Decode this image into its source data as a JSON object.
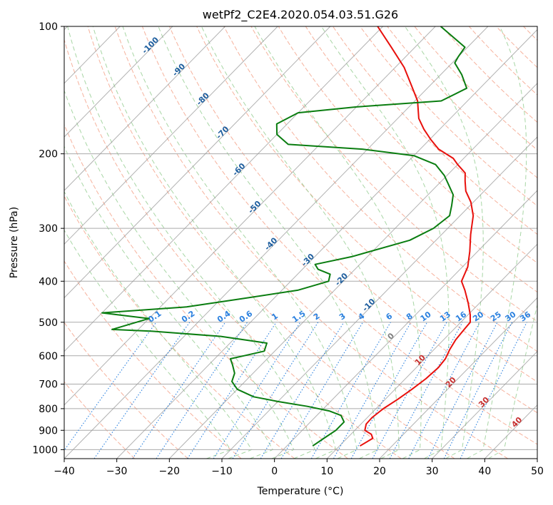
{
  "chart_data": {
    "type": "skew-t",
    "title": "wetPf2_C2E4.2020.054.03.51.G26",
    "xlabel": "Temperature (°C)",
    "ylabel": "Pressure (hPa)",
    "xlim": [
      -40,
      50
    ],
    "ylim": [
      1050,
      100
    ],
    "y_scale": "log",
    "x_ticks": [
      -40,
      -30,
      -20,
      -10,
      0,
      10,
      20,
      30,
      40,
      50
    ],
    "x_tick_labels": [
      "−40",
      "−30",
      "−20",
      "−10",
      "0",
      "10",
      "20",
      "30",
      "40",
      "50"
    ],
    "y_ticks": [
      100,
      200,
      300,
      400,
      500,
      600,
      700,
      800,
      900,
      1000
    ],
    "y_tick_labels": [
      "100",
      "200",
      "300",
      "400",
      "500",
      "600",
      "700",
      "800",
      "900",
      "1000"
    ],
    "grid": true,
    "colors": {
      "temperature": "#e8100c",
      "dewpoint": "#0a7d10",
      "isotherm": "#999999",
      "dry_adiabat": "#f5a58c",
      "moist_adiabat": "#9fd29b",
      "mixing_ratio": "#2a80df",
      "isotherm_label": "#1f5f9f",
      "dry_label": "#c73030",
      "zero_label": "#808080"
    },
    "series": [
      {
        "kind": "temperature",
        "points": [
          [
            980,
            13.9
          ],
          [
            940,
            14.9
          ],
          [
            920,
            13.9
          ],
          [
            900,
            11.9
          ],
          [
            870,
            11.0
          ],
          [
            840,
            10.9
          ],
          [
            800,
            11.4
          ],
          [
            760,
            12.4
          ],
          [
            720,
            13.2
          ],
          [
            680,
            13.9
          ],
          [
            640,
            14.2
          ],
          [
            610,
            13.9
          ],
          [
            580,
            13.0
          ],
          [
            550,
            12.3
          ],
          [
            520,
            12.0
          ],
          [
            500,
            11.8
          ],
          [
            480,
            10.4
          ],
          [
            450,
            7.8
          ],
          [
            420,
            4.8
          ],
          [
            400,
            2.5
          ],
          [
            370,
            1.0
          ],
          [
            340,
            -1.5
          ],
          [
            310,
            -4.5
          ],
          [
            280,
            -7.5
          ],
          [
            260,
            -10.5
          ],
          [
            245,
            -13.5
          ],
          [
            232,
            -15.5
          ],
          [
            222,
            -17.0
          ],
          [
            212,
            -20.0
          ],
          [
            205,
            -22.0
          ],
          [
            195,
            -26.5
          ],
          [
            185,
            -29.8
          ],
          [
            175,
            -33.0
          ],
          [
            165,
            -36.0
          ],
          [
            150,
            -39.5
          ],
          [
            138,
            -43.5
          ],
          [
            125,
            -48.3
          ],
          [
            112,
            -54.5
          ],
          [
            100,
            -61.0
          ]
        ]
      },
      {
        "kind": "dewpoint",
        "points": [
          [
            980,
            4.9
          ],
          [
            940,
            5.6
          ],
          [
            900,
            6.4
          ],
          [
            860,
            6.4
          ],
          [
            830,
            4.6
          ],
          [
            810,
            1.5
          ],
          [
            790,
            -3.5
          ],
          [
            770,
            -9.8
          ],
          [
            750,
            -15.5
          ],
          [
            720,
            -20.0
          ],
          [
            690,
            -22.5
          ],
          [
            660,
            -23.5
          ],
          [
            630,
            -25.5
          ],
          [
            610,
            -27.0
          ],
          [
            600,
            -25.0
          ],
          [
            585,
            -22.0
          ],
          [
            560,
            -23.0
          ],
          [
            540,
            -33.0
          ],
          [
            525,
            -47.0
          ],
          [
            520,
            -55.0
          ],
          [
            490,
            -50.0
          ],
          [
            475,
            -60.0
          ],
          [
            460,
            -45.0
          ],
          [
            440,
            -36.0
          ],
          [
            420,
            -27.0
          ],
          [
            400,
            -22.8
          ],
          [
            385,
            -23.8
          ],
          [
            375,
            -27.0
          ],
          [
            365,
            -28.5
          ],
          [
            350,
            -23.0
          ],
          [
            320,
            -15.0
          ],
          [
            300,
            -12.7
          ],
          [
            280,
            -12.0
          ],
          [
            265,
            -13.5
          ],
          [
            250,
            -15.2
          ],
          [
            235,
            -18.3
          ],
          [
            225,
            -20.5
          ],
          [
            212,
            -24.2
          ],
          [
            202,
            -30.0
          ],
          [
            195,
            -41.0
          ],
          [
            190,
            -56.0
          ],
          [
            180,
            -60.0
          ],
          [
            170,
            -62.0
          ],
          [
            160,
            -60.0
          ],
          [
            155,
            -50.0
          ],
          [
            150,
            -35.0
          ],
          [
            140,
            -32.5
          ],
          [
            130,
            -36.0
          ],
          [
            122,
            -39.5
          ],
          [
            118,
            -40.0
          ],
          [
            112,
            -40.5
          ],
          [
            100,
            -49.0
          ]
        ]
      }
    ],
    "isotherm_labels": [
      "-100",
      "-90",
      "-80",
      "-70",
      "-60",
      "-50",
      "-40",
      "-30",
      "-20",
      "-10",
      "0"
    ],
    "dry_adiabat_labels": [
      "10",
      "20",
      "30",
      "40"
    ],
    "mixing_ratio_labels": [
      "0.1",
      "0.2",
      "0.4",
      "0.6",
      "1",
      "1.5",
      "2",
      "3",
      "4",
      "6",
      "8",
      "10",
      "13",
      "16",
      "20",
      "25",
      "30",
      "36"
    ]
  }
}
